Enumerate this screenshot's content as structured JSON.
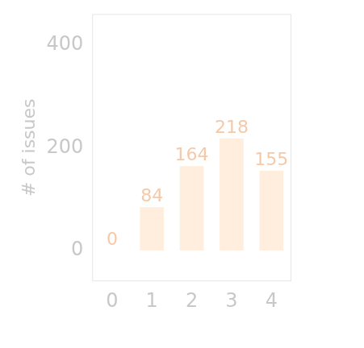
{
  "chart_data": {
    "type": "bar",
    "categories": [
      "0",
      "1",
      "2",
      "3",
      "4"
    ],
    "values": [
      0,
      84,
      164,
      218,
      155
    ],
    "color": "#ffeedd",
    "y_label": "# of issues",
    "ylim": [
      -60,
      460
    ],
    "yticks": [
      0,
      200,
      400
    ],
    "grid": false,
    "data_labels": true
  }
}
